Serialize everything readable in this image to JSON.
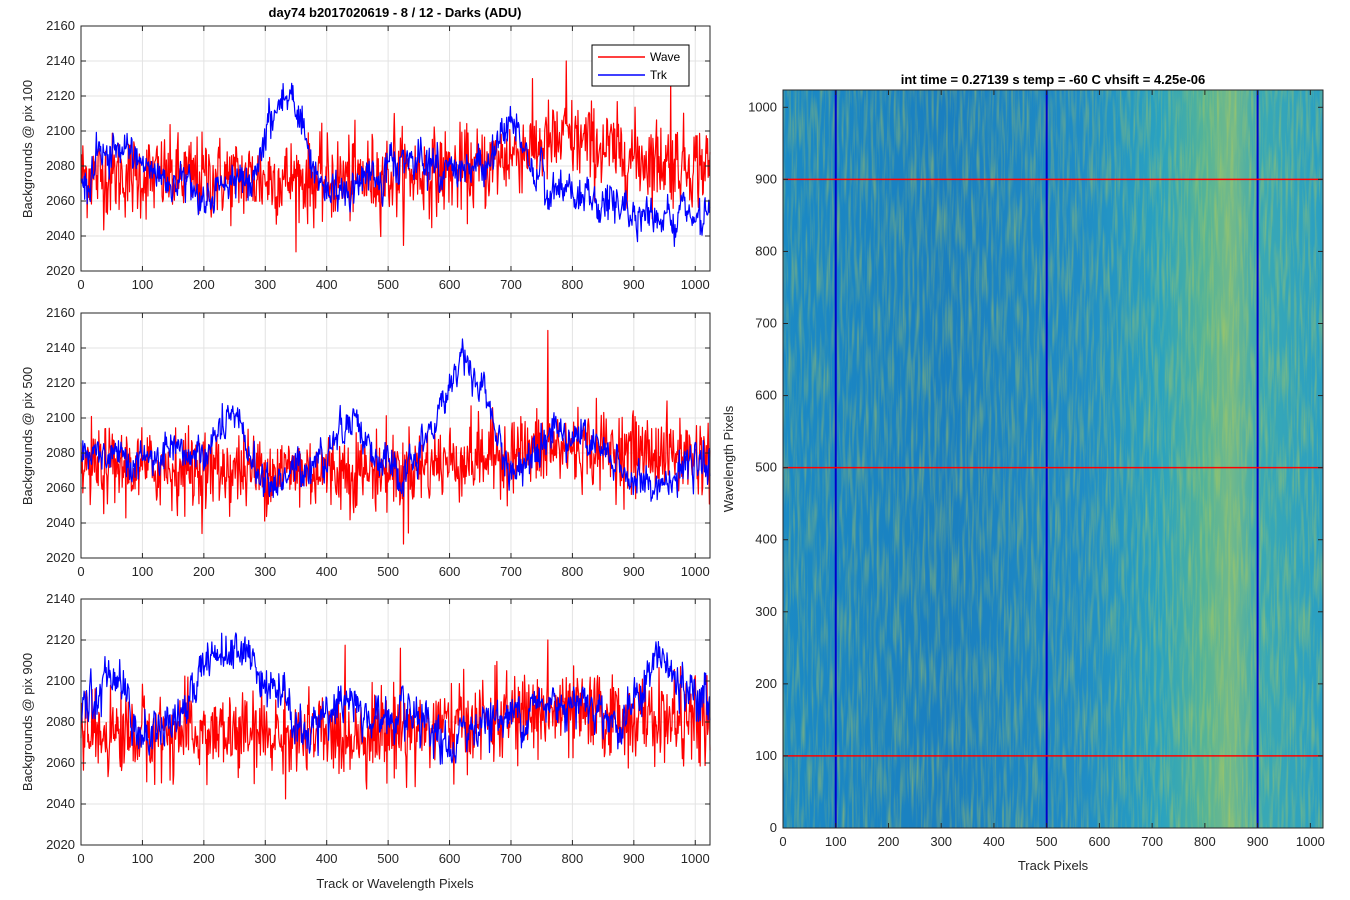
{
  "chart_data": [
    {
      "type": "line",
      "title": "day74 b2017020619 - 8 / 12 - Darks (ADU)",
      "xlabel": "",
      "ylabel": "Backgrounds @ pix 100",
      "xlim": [
        0,
        1024
      ],
      "ylim": [
        2020,
        2160
      ],
      "xticks": [
        "0",
        "100",
        "200",
        "300",
        "400",
        "500",
        "600",
        "700",
        "800",
        "900",
        "1000"
      ],
      "yticks": [
        "2020",
        "2040",
        "2060",
        "2080",
        "2100",
        "2120",
        "2140",
        "2160"
      ],
      "grid": true,
      "legend": "top-right",
      "series": [
        {
          "name": "Wave",
          "color": "#ff0000",
          "baseline": 2075,
          "noise": 14,
          "trend": [
            [
              0,
              2075
            ],
            [
              400,
              2072
            ],
            [
              650,
              2078
            ],
            [
              720,
              2090
            ],
            [
              800,
              2095
            ],
            [
              900,
              2085
            ],
            [
              1024,
              2080
            ]
          ],
          "spikes": [
            [
              790,
              2140
            ],
            [
              960,
              2130
            ],
            [
              510,
              2110
            ]
          ]
        },
        {
          "name": "Trk",
          "color": "#0000ff",
          "baseline": 2070,
          "noise": 6,
          "trend": [
            [
              0,
              2070
            ],
            [
              50,
              2090
            ],
            [
              100,
              2080
            ],
            [
              200,
              2065
            ],
            [
              280,
              2070
            ],
            [
              310,
              2110
            ],
            [
              335,
              2118
            ],
            [
              355,
              2110
            ],
            [
              375,
              2075
            ],
            [
              420,
              2065
            ],
            [
              480,
              2075
            ],
            [
              540,
              2085
            ],
            [
              600,
              2078
            ],
            [
              660,
              2080
            ],
            [
              700,
              2105
            ],
            [
              720,
              2090
            ],
            [
              760,
              2065
            ],
            [
              850,
              2058
            ],
            [
              950,
              2052
            ],
            [
              1024,
              2048
            ]
          ],
          "spikes": []
        }
      ]
    },
    {
      "type": "line",
      "title": "",
      "xlabel": "",
      "ylabel": "Backgrounds @ pix 500",
      "xlim": [
        0,
        1024
      ],
      "ylim": [
        2020,
        2160
      ],
      "xticks": [
        "0",
        "100",
        "200",
        "300",
        "400",
        "500",
        "600",
        "700",
        "800",
        "900",
        "1000"
      ],
      "yticks": [
        "2020",
        "2040",
        "2060",
        "2080",
        "2100",
        "2120",
        "2140",
        "2160"
      ],
      "grid": true,
      "series": [
        {
          "name": "Wave",
          "color": "#ff0000",
          "baseline": 2072,
          "noise": 13,
          "trend": [
            [
              0,
              2072
            ],
            [
              300,
              2070
            ],
            [
              500,
              2070
            ],
            [
              600,
              2075
            ],
            [
              700,
              2080
            ],
            [
              800,
              2083
            ],
            [
              1024,
              2078
            ]
          ],
          "spikes": [
            [
              760,
              2150
            ],
            [
              525,
              2028
            ]
          ]
        },
        {
          "name": "Trk",
          "color": "#0000ff",
          "baseline": 2075,
          "noise": 6,
          "trend": [
            [
              0,
              2078
            ],
            [
              100,
              2075
            ],
            [
              200,
              2080
            ],
            [
              250,
              2100
            ],
            [
              300,
              2060
            ],
            [
              400,
              2080
            ],
            [
              440,
              2105
            ],
            [
              480,
              2075
            ],
            [
              530,
              2065
            ],
            [
              580,
              2100
            ],
            [
              620,
              2138
            ],
            [
              660,
              2110
            ],
            [
              700,
              2065
            ],
            [
              760,
              2095
            ],
            [
              820,
              2088
            ],
            [
              880,
              2070
            ],
            [
              920,
              2060
            ],
            [
              1024,
              2075
            ]
          ],
          "spikes": []
        }
      ]
    },
    {
      "type": "line",
      "title": "",
      "xlabel": "Track or Wavelength Pixels",
      "ylabel": "Backgrounds @ pix 900",
      "xlim": [
        0,
        1024
      ],
      "ylim": [
        2020,
        2140
      ],
      "xticks": [
        "0",
        "100",
        "200",
        "300",
        "400",
        "500",
        "600",
        "700",
        "800",
        "900",
        "1000"
      ],
      "yticks": [
        "2020",
        "2040",
        "2060",
        "2080",
        "2100",
        "2120",
        "2140"
      ],
      "grid": true,
      "series": [
        {
          "name": "Wave",
          "color": "#ff0000",
          "baseline": 2075,
          "noise": 12,
          "trend": [
            [
              0,
              2075
            ],
            [
              400,
              2073
            ],
            [
              600,
              2078
            ],
            [
              750,
              2085
            ],
            [
              900,
              2082
            ],
            [
              1024,
              2080
            ]
          ],
          "spikes": [
            [
              520,
              2116
            ],
            [
              760,
              2120
            ]
          ]
        },
        {
          "name": "Trk",
          "color": "#0000ff",
          "baseline": 2085,
          "noise": 6,
          "trend": [
            [
              0,
              2082
            ],
            [
              60,
              2108
            ],
            [
              100,
              2070
            ],
            [
              180,
              2090
            ],
            [
              200,
              2112
            ],
            [
              260,
              2118
            ],
            [
              310,
              2098
            ],
            [
              360,
              2075
            ],
            [
              420,
              2090
            ],
            [
              470,
              2082
            ],
            [
              540,
              2080
            ],
            [
              600,
              2065
            ],
            [
              640,
              2080
            ],
            [
              700,
              2083
            ],
            [
              770,
              2090
            ],
            [
              820,
              2092
            ],
            [
              880,
              2078
            ],
            [
              940,
              2112
            ],
            [
              980,
              2095
            ],
            [
              1024,
              2090
            ]
          ],
          "spikes": []
        }
      ]
    },
    {
      "type": "heatmap",
      "title": "int time = 0.27139 s    temp = -60 C    vhsift = 4.25e-06",
      "xlabel": "Track Pixels",
      "ylabel": "Wavelength Pixels",
      "xlim": [
        0,
        1024
      ],
      "ylim": [
        0,
        1024
      ],
      "xticks": [
        "0",
        "100",
        "200",
        "300",
        "400",
        "500",
        "600",
        "700",
        "800",
        "900",
        "1000"
      ],
      "yticks": [
        "0",
        "100",
        "200",
        "300",
        "400",
        "500",
        "600",
        "700",
        "800",
        "900",
        "1000"
      ],
      "vertical_lines": {
        "color": "#0000cc",
        "x": [
          100,
          500,
          900
        ]
      },
      "horizontal_lines": {
        "color": "#ff0000",
        "y": [
          100,
          500,
          900
        ]
      },
      "colormap": [
        "#1a78c2",
        "#21a2c6",
        "#3cbfa8",
        "#a3c95a"
      ],
      "bright_band_x": [
        760,
        860
      ]
    }
  ]
}
